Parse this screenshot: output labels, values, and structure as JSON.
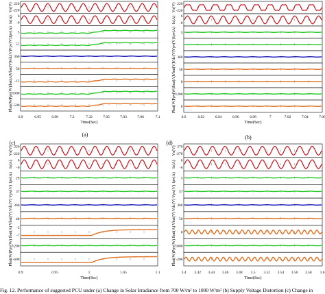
{
  "caption": "Fig. 12. Performance of suggested PCU under (a) Change in Solar Irradiance from 700 W/m² to 1000 W/m² (b) Supply Voltage Distortion (c) Change in",
  "colors": {
    "red": "#c8101a",
    "green": "#22c922",
    "blue": "#1a1ab8",
    "orange": "#e07020",
    "axis": "#000000",
    "panel_bg": "#ffffff"
  },
  "chart_data": [
    {
      "type": "line",
      "label": "(a)",
      "xlabel": "Time(Sec)",
      "xticks": [
        "6.9",
        "6.95",
        "6.98",
        "7.2",
        "7.32",
        "7.05",
        "7.03",
        "7.06",
        "7.1"
      ],
      "rows": [
        {
          "ylabel": "Vs(V)",
          "yticks": [
            "220",
            "-220"
          ],
          "series": "red-sine"
        },
        {
          "ylabel": "Is(A)",
          "yticks": [
            "6",
            "-6"
          ],
          "series": "red-sine"
        },
        {
          "ylabel": "Ipv(A)",
          "yticks": [
            "5"
          ],
          "series": "green-step-up"
        },
        {
          "ylabel": "Vpv(V)",
          "yticks": [
            "57"
          ],
          "series": "green-step-up"
        },
        {
          "ylabel": "Vdc(V)",
          "yticks": [
            "360"
          ],
          "series": "blue-flat"
        },
        {
          "ylabel": "Vbat(V)",
          "yticks": [
            "50"
          ],
          "series": "orange-flat"
        },
        {
          "ylabel": "Ibat(A)",
          "yticks": [
            "-12"
          ],
          "series": "orange-step"
        },
        {
          "ylabel": "Ppv(W)",
          "yticks": [
            "1600"
          ],
          "series": "green-step-up"
        },
        {
          "ylabel": "Pbat(W)",
          "yticks": [
            "-500"
          ],
          "series": "orange-step"
        }
      ]
    },
    {
      "type": "line",
      "label": "(b)",
      "xlabel": "Time(Sec)",
      "xticks": [
        "6.9",
        "6.92",
        "6.94",
        "6.96",
        "6.98",
        "7",
        "7.02",
        "7.04",
        "7.06"
      ],
      "rows": [
        {
          "ylabel": "Vs(V)",
          "yticks": [
            "220",
            "-220"
          ],
          "series": "red-distorted"
        },
        {
          "ylabel": "Is(A)",
          "yticks": [
            "6",
            "-6"
          ],
          "series": "red-sine"
        },
        {
          "ylabel": "Ipv(A)",
          "yticks": [
            "5"
          ],
          "series": "green-flat"
        },
        {
          "ylabel": "Vpv(V)",
          "yticks": [
            ""
          ],
          "series": "green-flat"
        },
        {
          "ylabel": "Vdc(V)",
          "yticks": [
            "360"
          ],
          "series": "blue-flat"
        },
        {
          "ylabel": "Vbat(V)",
          "yticks": [
            "50"
          ],
          "series": "orange-flat"
        },
        {
          "ylabel": "Ibat(A)",
          "yticks": [
            "0"
          ],
          "series": "orange-flat"
        },
        {
          "ylabel": "Ppv(W)",
          "yticks": [
            "1200"
          ],
          "series": "green-flat"
        },
        {
          "ylabel": "Pbat(W)",
          "yticks": [
            "0"
          ],
          "series": "orange-flat"
        }
      ]
    },
    {
      "type": "line",
      "label": "(c)",
      "xlabel": "Time(Sec)",
      "xticks": [
        "0.9",
        "0.95",
        "1",
        "1.05",
        "1.1"
      ],
      "rows": [
        {
          "ylabel": "Vs(V)",
          "yticks": [
            "220",
            "-220"
          ],
          "series": "red-sine"
        },
        {
          "ylabel": "Is(A)",
          "yticks": [
            "6",
            "-6"
          ],
          "series": "red-sine"
        },
        {
          "ylabel": "Ipv(A)",
          "yticks": [
            "29"
          ],
          "series": "green-flat"
        },
        {
          "ylabel": "Vpv(V)",
          "yticks": [
            "37"
          ],
          "series": "green-flat"
        },
        {
          "ylabel": "Vdc(V)",
          "yticks": [
            "360"
          ],
          "series": "blue-flat"
        },
        {
          "ylabel": "Vbat(V)",
          "yticks": [
            "48"
          ],
          "series": "orange-flat"
        },
        {
          "ylabel": "Ibat(A)",
          "yticks": [
            "-5",
            "-7"
          ],
          "series": "orange-rise"
        },
        {
          "ylabel": "Ppv(W)",
          "yticks": [
            "1200"
          ],
          "series": "green-flat"
        },
        {
          "ylabel": "Pbat(W)",
          "yticks": [
            "-600"
          ],
          "series": "orange-rise"
        }
      ]
    },
    {
      "type": "line",
      "label": "(d)",
      "xlabel": "Time(Sec)",
      "xticks": [
        "3.4",
        "3.42",
        "3.44",
        "3.46",
        "3.48",
        "3.5",
        "3.52",
        "3.54",
        "3.56",
        "3.58",
        "3.6"
      ],
      "rows": [
        {
          "ylabel": "Vs(V)",
          "yticks": [
            "270",
            "-270"
          ],
          "series": "red-sine"
        },
        {
          "ylabel": "Is(A)",
          "yticks": [
            "6",
            "-6"
          ],
          "series": "red-sine"
        },
        {
          "ylabel": "Ipv(A)",
          "yticks": [
            "5"
          ],
          "series": "green-flat"
        },
        {
          "ylabel": "Vpv(V)",
          "yticks": [
            "57"
          ],
          "series": "green-flat"
        },
        {
          "ylabel": "Vdc(V)",
          "yticks": [
            "360"
          ],
          "series": "blue-flat"
        },
        {
          "ylabel": "Vbat(V)",
          "yticks": [
            "50"
          ],
          "series": "orange-flat"
        },
        {
          "ylabel": "Ibat(A)",
          "yticks": [
            "0"
          ],
          "series": "orange-ripple"
        },
        {
          "ylabel": "Ppv(W)",
          "yticks": [
            "1600"
          ],
          "series": "green-flat"
        },
        {
          "ylabel": "Pbat(W)",
          "yticks": [
            "-200"
          ],
          "series": "orange-ripple"
        }
      ]
    }
  ]
}
